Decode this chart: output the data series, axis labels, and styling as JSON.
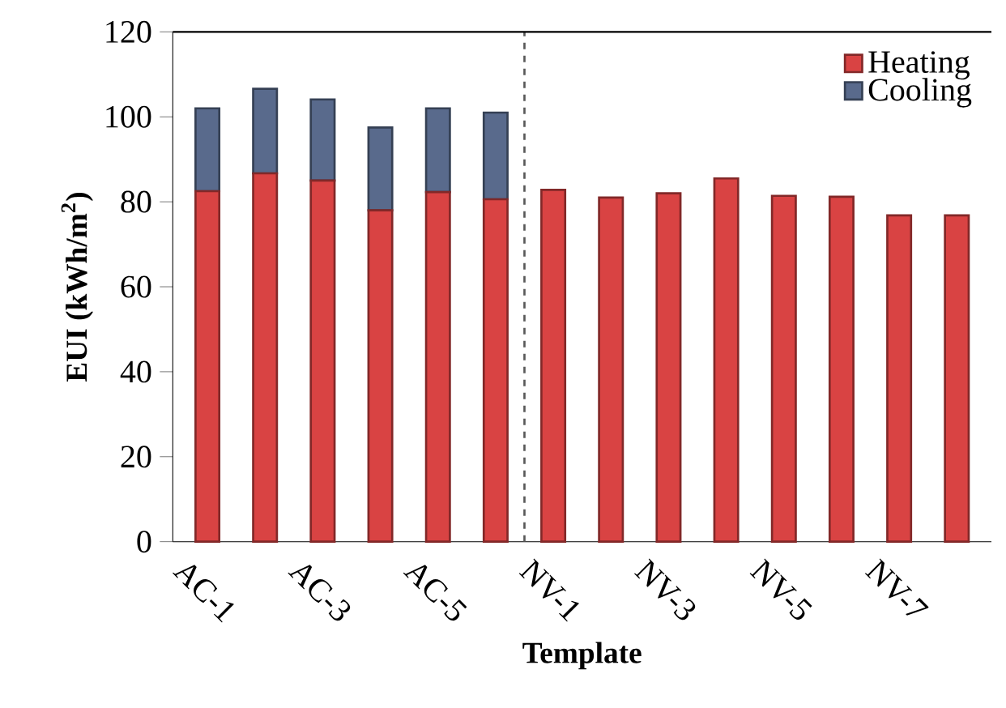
{
  "chart_data": {
    "type": "bar",
    "stacked": true,
    "xlabel": "Template",
    "ylabel": "EUI (kWh/m$^{2}$)",
    "categories": [
      "AC-1",
      null,
      "AC-3",
      null,
      "AC-5",
      null,
      "NV-1",
      null,
      "NV-3",
      null,
      "NV-5",
      null,
      "NV-7",
      null
    ],
    "series": [
      {
        "name": "Heating",
        "color": "#d94343",
        "values": [
          82.5,
          86.7,
          85.0,
          78.0,
          82.3,
          80.6,
          82.8,
          81.0,
          82.0,
          85.5,
          81.4,
          81.2,
          76.8,
          76.8
        ]
      },
      {
        "name": "Cooling",
        "color": "#596a8c",
        "values": [
          19.5,
          19.9,
          19.1,
          19.5,
          19.7,
          20.4,
          null,
          null,
          null,
          null,
          null,
          null,
          null,
          null
        ]
      }
    ],
    "ylim": [
      0,
      120
    ],
    "yticks": [
      0,
      20,
      40,
      60,
      80,
      100,
      120
    ],
    "legend": "top right"
  }
}
